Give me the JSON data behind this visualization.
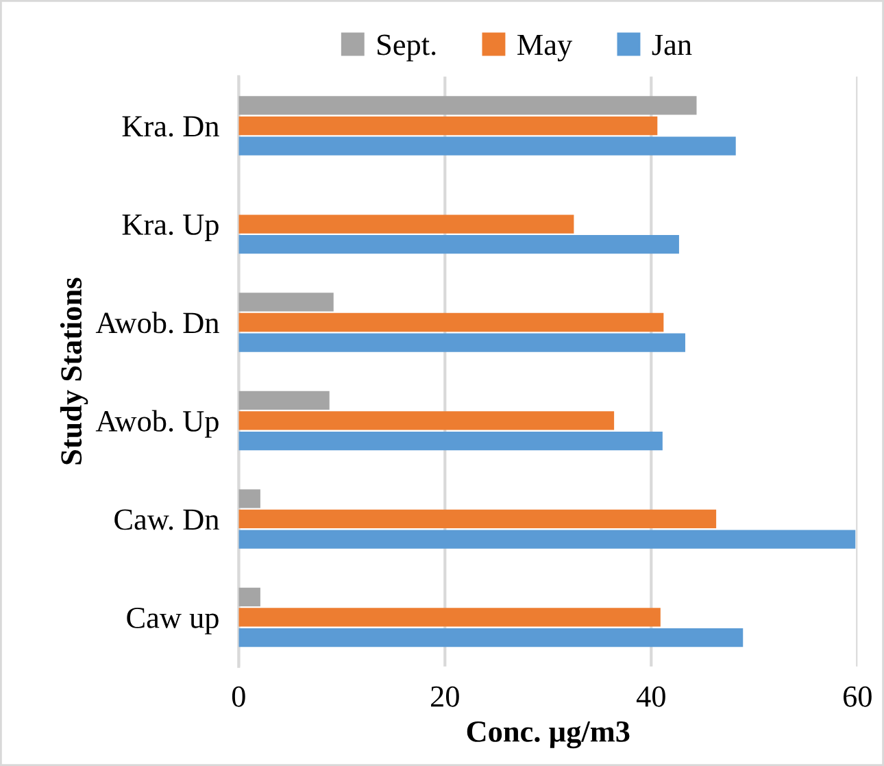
{
  "chart_data": {
    "type": "bar",
    "orientation": "horizontal",
    "xlabel": "Conc. µg/m3",
    "ylabel": "Study Stations",
    "categories": [
      "Kra. Dn",
      "Kra. Up",
      "Awob. Dn",
      "Awob. Up",
      "Caw. Dn",
      "Caw up"
    ],
    "series": [
      {
        "name": "Sept.",
        "color": "#a5a5a5",
        "values": [
          44.4,
          null,
          9.2,
          8.8,
          2.1,
          2.1
        ]
      },
      {
        "name": "May",
        "color": "#ed7d31",
        "values": [
          40.6,
          32.5,
          41.2,
          36.4,
          46.3,
          40.9
        ]
      },
      {
        "name": "Jan",
        "color": "#5b9bd5",
        "values": [
          48.2,
          42.7,
          43.3,
          41.1,
          59.8,
          48.9
        ]
      }
    ],
    "xlim": [
      0,
      60
    ],
    "xticks": [
      0,
      20,
      40,
      60
    ],
    "grid": "x",
    "legend": "top"
  }
}
